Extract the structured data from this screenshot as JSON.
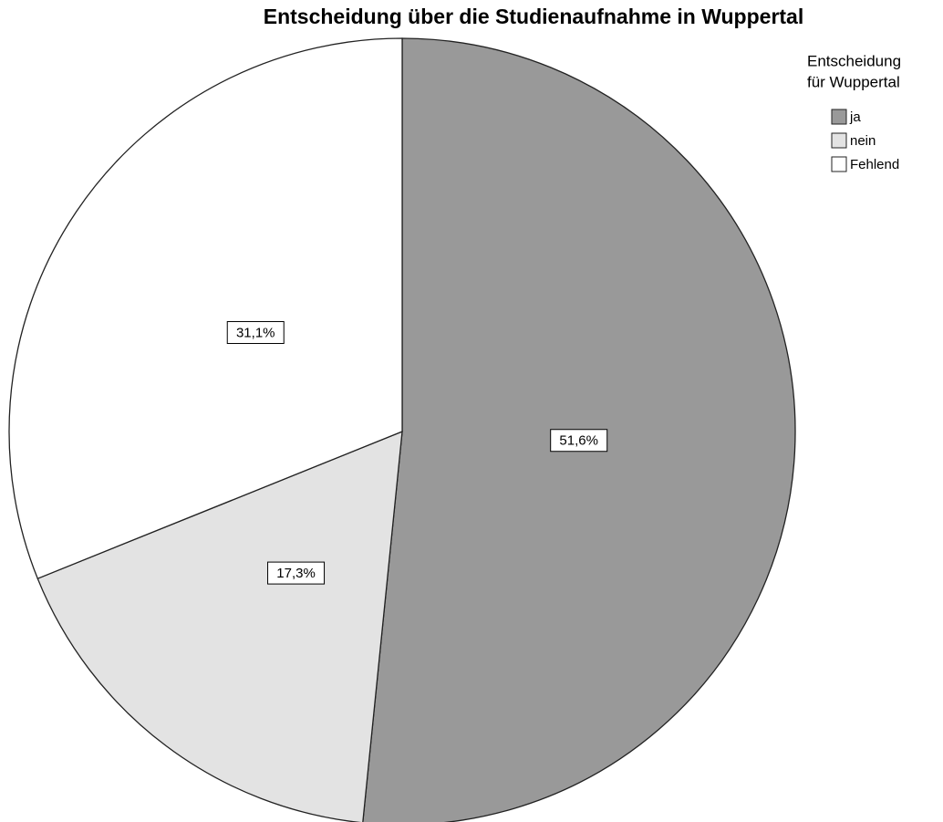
{
  "chart_data": {
    "type": "pie",
    "title": "Entscheidung über die Studienaufnahme in Wuppertal",
    "legend_title": [
      "Entscheidung",
      "für Wuppertal"
    ],
    "categories": [
      "ja",
      "nein",
      "Fehlend"
    ],
    "values": [
      51.6,
      17.3,
      31.1
    ],
    "value_labels": [
      "51,6%",
      "17,3%",
      "31,1%"
    ],
    "colors": [
      "#999999",
      "#e3e3e3",
      "#ffffff"
    ],
    "legend": "upper right"
  }
}
